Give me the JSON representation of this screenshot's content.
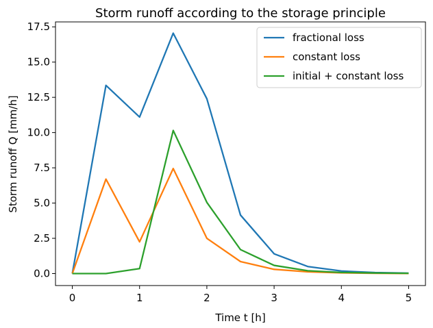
{
  "chart_data": {
    "type": "line",
    "title": "Storm runoff according to the storage principle",
    "xlabel": "Time t [h]",
    "ylabel": "Storm runoff Q [mm/h]",
    "xlim": [
      -0.25,
      5.25
    ],
    "ylim": [
      -0.85,
      17.85
    ],
    "xticks": [
      0,
      1,
      2,
      3,
      4,
      5
    ],
    "xtick_labels": [
      "0",
      "1",
      "2",
      "3",
      "4",
      "5"
    ],
    "yticks": [
      0,
      2.5,
      5,
      7.5,
      10,
      12.5,
      15,
      17.5
    ],
    "ytick_labels": [
      "0.0",
      "2.5",
      "5.0",
      "7.5",
      "10.0",
      "12.5",
      "15.0",
      "17.5"
    ],
    "grid": false,
    "legend_position": "top-right",
    "x": [
      0,
      0.5,
      1,
      1.5,
      2,
      2.5,
      3,
      3.5,
      4,
      4.5,
      5
    ],
    "series": [
      {
        "name": "fractional loss",
        "color": "#1f77b4",
        "values": [
          0,
          13.35,
          11.1,
          17.05,
          12.4,
          4.15,
          1.4,
          0.5,
          0.18,
          0.07,
          0.03
        ]
      },
      {
        "name": "constant loss",
        "color": "#ff7f0e",
        "values": [
          0,
          6.7,
          2.25,
          7.45,
          2.5,
          0.85,
          0.3,
          0.12,
          0.05,
          0.02,
          0.01
        ]
      },
      {
        "name": "initial + constant loss",
        "color": "#2ca02c",
        "values": [
          0,
          0,
          0.35,
          10.15,
          5.05,
          1.7,
          0.58,
          0.2,
          0.08,
          0.04,
          0.02
        ]
      }
    ]
  }
}
